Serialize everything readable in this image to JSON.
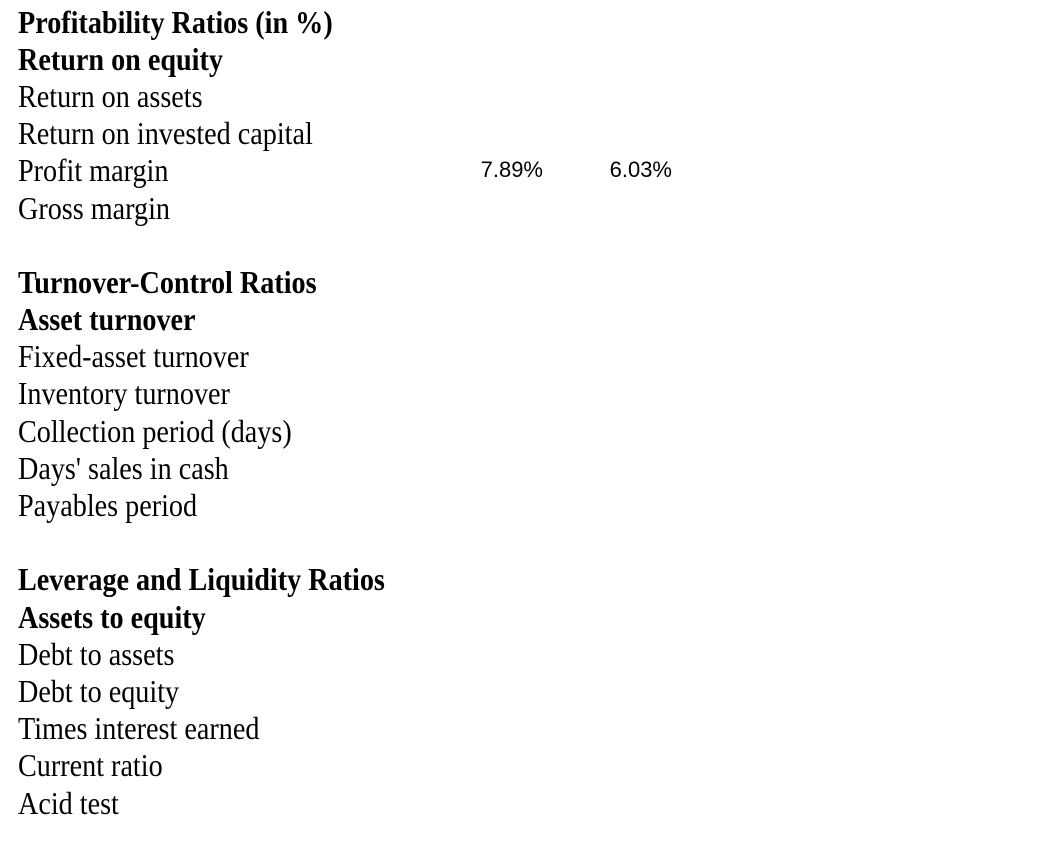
{
  "page": {
    "background_color": "#ffffff",
    "text_color": "#000000"
  },
  "sheet": {
    "rows": [
      {
        "label": "Profitability Ratios (in %)",
        "bold": true
      },
      {
        "label": "Return on equity",
        "bold": true
      },
      {
        "label": "Return on assets",
        "bold": false
      },
      {
        "label": "Return on invested capital",
        "bold": false
      },
      {
        "label": "Profit margin",
        "bold": false,
        "value1": "7.89%",
        "value2": "6.03%"
      },
      {
        "label": "Gross margin",
        "bold": false
      },
      {
        "label": "",
        "bold": false,
        "blank": true
      },
      {
        "label": "Turnover-Control Ratios",
        "bold": true
      },
      {
        "label": "Asset turnover",
        "bold": true
      },
      {
        "label": "Fixed-asset turnover",
        "bold": false
      },
      {
        "label": "Inventory turnover",
        "bold": false
      },
      {
        "label": "Collection period (days)",
        "bold": false
      },
      {
        "label": "Days' sales in cash",
        "bold": false
      },
      {
        "label": "Payables period",
        "bold": false
      },
      {
        "label": "",
        "bold": false,
        "blank": true
      },
      {
        "label": "Leverage and Liquidity Ratios",
        "bold": true
      },
      {
        "label": "Assets to equity",
        "bold": true
      },
      {
        "label": "Debt to assets",
        "bold": false
      },
      {
        "label": "Debt to equity",
        "bold": false
      },
      {
        "label": "Times interest earned",
        "bold": false
      },
      {
        "label": "Current ratio",
        "bold": false
      },
      {
        "label": "Acid test",
        "bold": false
      }
    ]
  }
}
